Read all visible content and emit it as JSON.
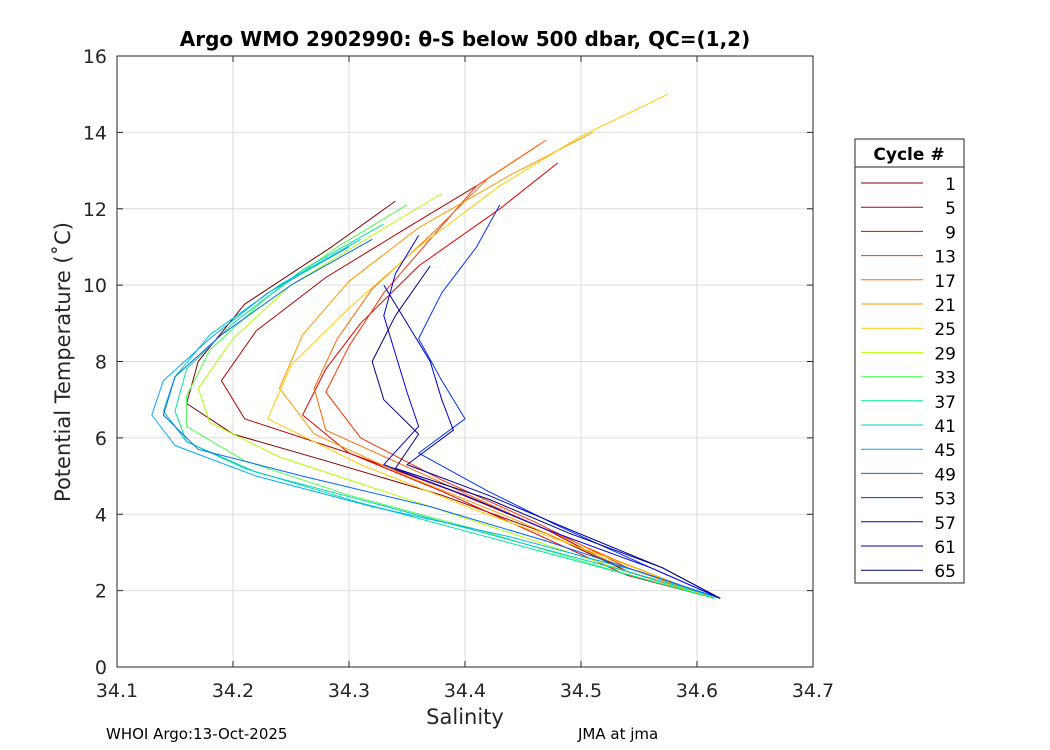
{
  "chart_data": {
    "type": "line",
    "title": "Argo WMO 2902990: θ-S below 500 dbar,  QC=(1,2)",
    "xlabel": "Salinity",
    "ylabel": "Potential Temperature (˚C)",
    "xlim": [
      34.1,
      34.7
    ],
    "ylim": [
      0,
      16
    ],
    "xticks": [
      "34.1",
      "34.2",
      "34.3",
      "34.4",
      "34.5",
      "34.6",
      "34.7"
    ],
    "yticks": [
      "0",
      "2",
      "4",
      "6",
      "8",
      "10",
      "12",
      "14",
      "16"
    ],
    "grid": true,
    "legend_title": "Cycle #",
    "legend_position": "right",
    "series": [
      {
        "name": "1",
        "color": "#7f0000",
        "t": [
          12.2,
          11.0,
          9.5,
          8.0,
          6.9,
          6.1,
          5.4,
          4.5,
          3.5,
          2.5,
          1.8
        ],
        "s": [
          34.34,
          34.285,
          34.21,
          34.17,
          34.16,
          34.2,
          34.28,
          34.38,
          34.47,
          34.54,
          34.615
        ]
      },
      {
        "name": "5",
        "color": "#b30000",
        "t": [
          12.6,
          11.5,
          10.2,
          8.8,
          7.5,
          6.5,
          5.6,
          4.6,
          3.6,
          2.5,
          1.8
        ],
        "s": [
          34.41,
          34.35,
          34.28,
          34.22,
          34.19,
          34.21,
          34.3,
          34.39,
          34.47,
          34.54,
          34.615
        ]
      },
      {
        "name": "9",
        "color": "#e60000",
        "t": [
          13.2,
          12.0,
          10.5,
          9.0,
          7.8,
          6.6,
          5.6,
          4.6,
          3.5,
          2.4,
          1.8
        ],
        "s": [
          34.48,
          34.43,
          34.36,
          34.31,
          34.28,
          34.26,
          34.3,
          34.38,
          34.46,
          34.54,
          34.615
        ]
      },
      {
        "name": "13",
        "color": "#ff3300",
        "t": [
          13.7,
          12.6,
          11.2,
          9.8,
          8.4,
          7.2,
          6.0,
          4.9,
          3.8,
          2.6,
          1.8
        ],
        "s": [
          34.465,
          34.41,
          34.37,
          34.33,
          34.3,
          34.28,
          34.31,
          34.38,
          34.46,
          34.54,
          34.615
        ]
      },
      {
        "name": "17",
        "color": "#ff6600",
        "t": [
          13.8,
          12.8,
          11.3,
          9.9,
          8.6,
          7.3,
          6.2,
          5.1,
          4.0,
          2.8,
          1.8
        ],
        "s": [
          34.47,
          34.42,
          34.37,
          34.32,
          34.29,
          34.27,
          34.28,
          34.36,
          34.44,
          34.53,
          34.615
        ]
      },
      {
        "name": "21",
        "color": "#ff9900",
        "t": [
          14.0,
          12.9,
          11.5,
          10.1,
          8.7,
          7.3,
          6.1,
          5.0,
          3.9,
          2.7,
          1.8
        ],
        "s": [
          34.51,
          34.44,
          34.36,
          34.3,
          34.26,
          34.24,
          34.27,
          34.35,
          34.44,
          34.53,
          34.615
        ]
      },
      {
        "name": "25",
        "color": "#ffcc00",
        "t": [
          15.0,
          13.9,
          12.6,
          11.0,
          9.4,
          7.9,
          6.5,
          5.3,
          4.1,
          2.9,
          1.8
        ],
        "s": [
          34.575,
          34.5,
          34.43,
          34.36,
          34.3,
          34.25,
          34.23,
          34.31,
          34.41,
          34.52,
          34.615
        ]
      },
      {
        "name": "29",
        "color": "#b3ff00",
        "t": [
          12.4,
          11.3,
          10.0,
          8.6,
          7.3,
          6.4,
          5.5,
          4.6,
          3.6,
          2.6,
          1.8
        ],
        "s": [
          34.38,
          34.32,
          34.25,
          34.2,
          34.17,
          34.18,
          34.24,
          34.33,
          34.43,
          34.53,
          34.615
        ]
      },
      {
        "name": "33",
        "color": "#4dff4d",
        "t": [
          12.1,
          11.0,
          9.7,
          8.3,
          7.1,
          6.3,
          5.4,
          4.5,
          3.6,
          2.6,
          1.8
        ],
        "s": [
          34.35,
          34.29,
          34.23,
          34.18,
          34.16,
          34.16,
          34.21,
          34.3,
          34.41,
          34.52,
          34.615
        ]
      },
      {
        "name": "37",
        "color": "#00e699",
        "t": [
          11.6,
          10.4,
          9.0,
          7.8,
          6.7,
          5.9,
          5.2,
          4.3,
          3.4,
          2.5,
          1.8
        ],
        "s": [
          34.33,
          34.26,
          34.2,
          34.16,
          34.15,
          34.16,
          34.21,
          34.31,
          34.42,
          34.53,
          34.615
        ]
      },
      {
        "name": "41",
        "color": "#00cccc",
        "t": [
          11.2,
          10.0,
          8.7,
          7.6,
          6.7,
          5.9,
          5.1,
          4.3,
          3.4,
          2.5,
          1.8
        ],
        "s": [
          34.31,
          34.24,
          34.18,
          34.15,
          34.14,
          34.16,
          34.22,
          34.32,
          34.43,
          34.54,
          34.62
        ]
      },
      {
        "name": "45",
        "color": "#00aaff",
        "t": [
          11.0,
          9.8,
          8.6,
          7.5,
          6.6,
          5.8,
          5.0,
          4.2,
          3.4,
          2.5,
          1.8
        ],
        "s": [
          34.3,
          34.23,
          34.18,
          34.14,
          34.13,
          34.15,
          34.22,
          34.32,
          34.44,
          34.55,
          34.62
        ]
      },
      {
        "name": "49",
        "color": "#0066ff",
        "t": [
          11.2,
          10.0,
          8.7,
          7.6,
          6.6,
          5.7,
          5.0,
          4.2,
          3.3,
          2.4,
          1.8
        ],
        "s": [
          34.32,
          34.25,
          34.19,
          34.15,
          34.14,
          34.17,
          34.26,
          34.37,
          34.47,
          34.56,
          34.62
        ]
      },
      {
        "name": "53",
        "color": "#0033ff",
        "t": [
          12.1,
          11.0,
          9.8,
          8.6,
          7.5,
          6.5,
          5.6,
          4.6,
          3.7,
          2.6,
          1.8
        ],
        "s": [
          34.43,
          34.41,
          34.38,
          34.36,
          34.38,
          34.4,
          34.36,
          34.42,
          34.48,
          34.56,
          34.62
        ]
      },
      {
        "name": "57",
        "color": "#0000e6",
        "t": [
          11.3,
          10.3,
          9.2,
          8.2,
          7.2,
          6.3,
          5.3,
          4.5,
          3.6,
          2.6,
          1.8
        ],
        "s": [
          34.36,
          34.34,
          34.33,
          34.34,
          34.35,
          34.36,
          34.33,
          34.4,
          34.47,
          34.56,
          34.62
        ]
      },
      {
        "name": "61",
        "color": "#0000b3",
        "t": [
          10.0,
          9.0,
          8.0,
          7.0,
          6.2,
          5.3,
          4.5,
          3.6,
          2.6,
          1.8
        ],
        "s": [
          34.33,
          34.35,
          34.37,
          34.38,
          34.39,
          34.35,
          34.42,
          34.49,
          34.57,
          34.62
        ]
      },
      {
        "name": "65",
        "color": "#000080",
        "t": [
          10.5,
          9.2,
          8.0,
          7.0,
          6.1,
          5.2,
          4.4,
          3.5,
          2.6,
          1.8
        ],
        "s": [
          34.37,
          34.34,
          34.32,
          34.33,
          34.36,
          34.34,
          34.42,
          34.49,
          34.57,
          34.62
        ]
      }
    ]
  },
  "footer": {
    "left": "WHOI Argo:13-Oct-2025",
    "right": "JMA at jma"
  }
}
